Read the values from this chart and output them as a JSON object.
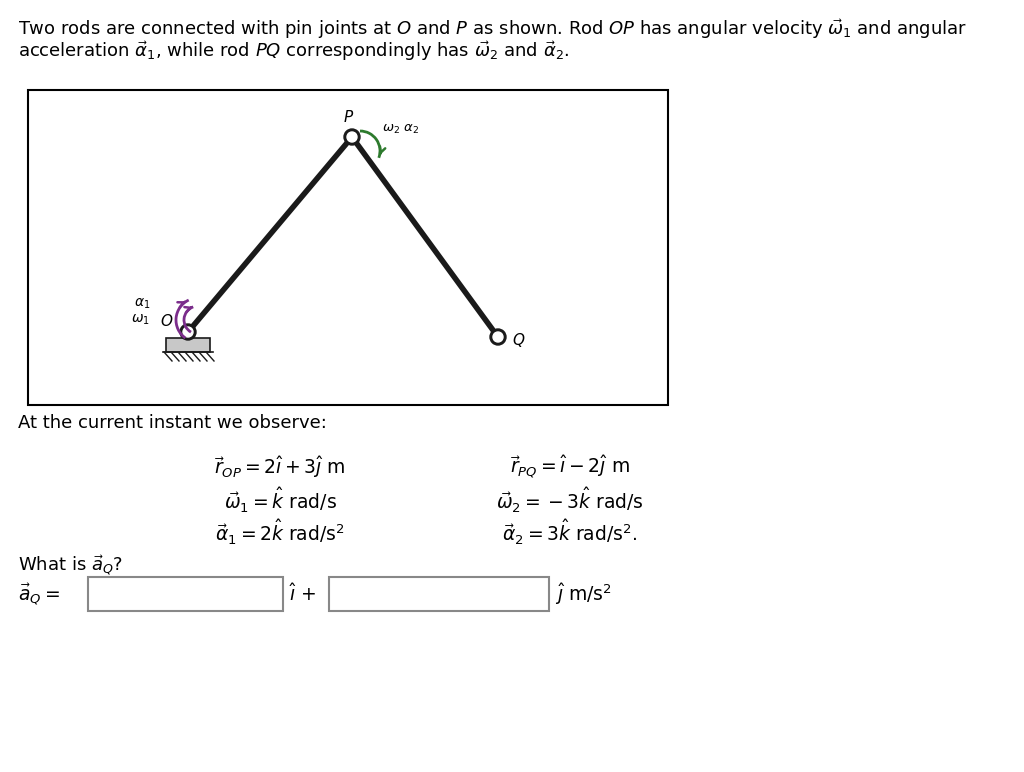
{
  "bg_color": "#ffffff",
  "title_line1": "Two rods are connected with pin joints at $\\mathit{O}$ and $\\mathit{P}$ as shown. Rod $\\mathit{OP}$ has angular velocity $\\vec{\\omega}_1$ and angular",
  "title_line2": "acceleration $\\vec{\\alpha}_1$, while rod $\\mathit{PQ}$ correspondingly has $\\vec{\\omega}_2$ and $\\vec{\\alpha}_2$.",
  "observe_text": "At the current instant we observe:",
  "eq_r_OP": "$\\vec{r}_{OP} = 2\\hat{\\imath} + 3\\hat{\\jmath}$ m",
  "eq_r_PQ": "$\\vec{r}_{PQ} = \\hat{\\imath} - 2\\hat{\\jmath}$ m",
  "eq_w1": "$\\vec{\\omega}_1 = \\hat{k}$ rad/s",
  "eq_w2": "$\\vec{\\omega}_2 = -3\\hat{k}$ rad/s",
  "eq_a1": "$\\vec{\\alpha}_1 = 2\\hat{k}$ rad/s$^2$",
  "eq_a2": "$\\vec{\\alpha}_2 = 3\\hat{k}$ rad/s$^2$.",
  "question": "What is $\\vec{a}_Q$?",
  "answer_prefix": "$\\vec{a}_Q =$",
  "answer_ihat": "$\\hat{\\imath}$ +",
  "answer_jhat": "$\\hat{\\jmath}$ m/s$^2$",
  "rod_color": "#1a1a1a",
  "purple_color": "#7B2D8B",
  "green_color": "#2d7a2d",
  "ground_fill": "#c8c8c8",
  "pin_outer": "#1a1a1a",
  "pin_inner": "#ffffff",
  "diag_border": "#000000",
  "diag_bg": "#ffffff",
  "text_color": "#000000",
  "box_edge": "#888888"
}
